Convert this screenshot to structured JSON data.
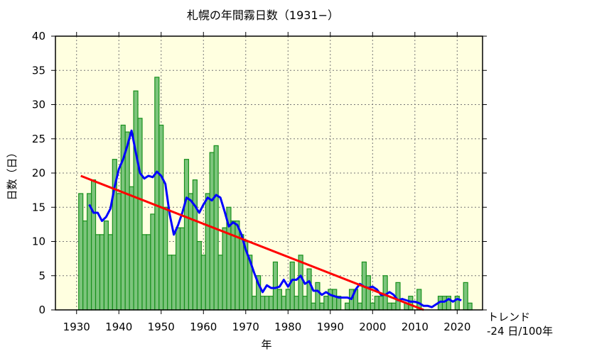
{
  "chart_data": {
    "type": "bar",
    "title": "札幌の年間霧日数（1931−）",
    "xlabel": "年",
    "ylabel": "日数（日）",
    "xlim": [
      1925,
      2026
    ],
    "ylim": [
      0,
      40
    ],
    "x_ticks": [
      1930,
      1940,
      1950,
      1960,
      1970,
      1980,
      1990,
      2000,
      2010,
      2020
    ],
    "y_ticks": [
      0,
      5,
      10,
      15,
      20,
      25,
      30,
      35,
      40
    ],
    "grid": true,
    "annotation": {
      "line1": "トレンド",
      "line2": "-24 日/100年"
    },
    "colors": {
      "bar_fill": "#7cc47c",
      "bar_edge": "#17901c",
      "moving_average": "#0000ff",
      "trend": "#ff0000",
      "background": "#ffffe0"
    },
    "years": [
      1931,
      1932,
      1933,
      1934,
      1935,
      1936,
      1937,
      1938,
      1939,
      1940,
      1941,
      1942,
      1943,
      1944,
      1945,
      1946,
      1947,
      1948,
      1949,
      1950,
      1951,
      1952,
      1953,
      1954,
      1955,
      1956,
      1957,
      1958,
      1959,
      1960,
      1961,
      1962,
      1963,
      1964,
      1965,
      1966,
      1967,
      1968,
      1969,
      1970,
      1971,
      1972,
      1973,
      1974,
      1975,
      1976,
      1977,
      1978,
      1979,
      1980,
      1981,
      1982,
      1983,
      1984,
      1985,
      1986,
      1987,
      1988,
      1989,
      1990,
      1991,
      1992,
      1993,
      1994,
      1995,
      1996,
      1997,
      1998,
      1999,
      2000,
      2001,
      2002,
      2003,
      2004,
      2005,
      2006,
      2007,
      2008,
      2009,
      2010,
      2011,
      2012,
      2013,
      2014,
      2015,
      2016,
      2017,
      2018,
      2019,
      2020,
      2021,
      2022,
      2023
    ],
    "values": [
      17,
      13,
      17,
      19,
      11,
      11,
      13,
      11,
      22,
      17,
      27,
      26,
      18,
      32,
      28,
      11,
      11,
      14,
      34,
      27,
      15,
      8,
      8,
      12,
      12,
      22,
      17,
      19,
      10,
      8,
      17,
      23,
      24,
      8,
      12,
      15,
      13,
      13,
      11,
      10,
      8,
      2,
      5,
      2,
      2,
      2,
      7,
      3,
      2,
      3,
      7,
      2,
      8,
      2,
      6,
      1,
      4,
      1,
      2,
      3,
      3,
      2,
      0,
      1,
      3,
      3,
      1,
      7,
      5,
      1,
      2,
      2,
      5,
      1,
      1,
      4,
      0,
      1,
      2,
      0,
      3,
      0,
      0,
      0,
      0,
      2,
      2,
      2,
      0,
      2,
      0,
      4,
      1
    ],
    "moving_average_window": 5,
    "trend_per_100_years": -24
  }
}
